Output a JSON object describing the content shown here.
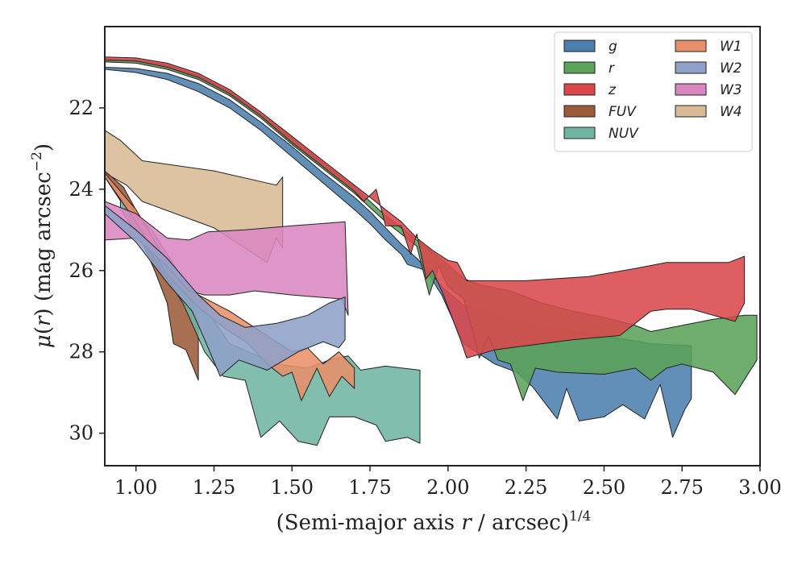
{
  "chart_data": {
    "type": "area",
    "xlabel": "(Semi-major axis r / arcsec)",
    "xlabel_italic_part": "r",
    "xlabel_superscript": "1/4",
    "ylabel": "μ(r) (mag arcsec",
    "ylabel_superscript": "−2",
    "ylabel_close": ")",
    "xlim": [
      0.9,
      3.0
    ],
    "ylim": [
      30.8,
      20.0
    ],
    "y_inverted": true,
    "xticks": [
      1.0,
      1.25,
      1.5,
      1.75,
      2.0,
      2.25,
      2.5,
      2.75,
      3.0
    ],
    "xtick_labels": [
      "1.00",
      "1.25",
      "1.50",
      "1.75",
      "2.00",
      "2.25",
      "2.50",
      "2.75",
      "3.00"
    ],
    "yticks": [
      22,
      24,
      26,
      28,
      30
    ],
    "ytick_labels": [
      "22",
      "24",
      "26",
      "28",
      "30"
    ],
    "grid": false,
    "legend_placement": "top-right",
    "legend_columns": 2,
    "series": [
      {
        "name": "W4",
        "color": "#d8bb95",
        "upper": [
          [
            0.9,
            22.55
          ],
          [
            0.95,
            22.8
          ],
          [
            1.02,
            23.3
          ],
          [
            1.25,
            23.55
          ],
          [
            1.45,
            23.9
          ],
          [
            1.47,
            23.7
          ]
        ],
        "lower": [
          [
            0.9,
            23.6
          ],
          [
            0.97,
            23.9
          ],
          [
            1.02,
            24.3
          ],
          [
            1.25,
            24.95
          ],
          [
            1.42,
            25.8
          ],
          [
            1.45,
            25.2
          ],
          [
            1.47,
            25.45
          ]
        ]
      },
      {
        "name": "FUV",
        "color": "#9c5b3a",
        "upper": [
          [
            0.9,
            23.55
          ],
          [
            0.96,
            23.95
          ],
          [
            1.02,
            24.8
          ],
          [
            1.07,
            25.6
          ],
          [
            1.12,
            26.3
          ],
          [
            1.17,
            26.6
          ],
          [
            1.2,
            27.1
          ]
        ],
        "lower": [
          [
            0.9,
            23.7
          ],
          [
            0.96,
            24.4
          ],
          [
            1.02,
            25.3
          ],
          [
            1.06,
            26.0
          ],
          [
            1.1,
            26.8
          ],
          [
            1.12,
            27.8
          ],
          [
            1.16,
            27.95
          ],
          [
            1.2,
            28.7
          ]
        ]
      },
      {
        "name": "NUV",
        "color": "#6fb5a2",
        "upper": [
          [
            0.95,
            24.2
          ],
          [
            1.05,
            25.0
          ],
          [
            1.15,
            26.2
          ],
          [
            1.22,
            26.9
          ],
          [
            1.3,
            27.8
          ],
          [
            1.45,
            28.3
          ],
          [
            1.55,
            28.4
          ],
          [
            1.62,
            28.2
          ],
          [
            1.68,
            28.1
          ],
          [
            1.72,
            28.45
          ],
          [
            1.8,
            28.35
          ],
          [
            1.91,
            28.45
          ]
        ],
        "lower": [
          [
            0.95,
            24.5
          ],
          [
            1.05,
            25.6
          ],
          [
            1.15,
            26.8
          ],
          [
            1.22,
            28.0
          ],
          [
            1.28,
            28.6
          ],
          [
            1.35,
            28.7
          ],
          [
            1.4,
            30.1
          ],
          [
            1.46,
            29.7
          ],
          [
            1.52,
            30.2
          ],
          [
            1.58,
            30.3
          ],
          [
            1.62,
            29.6
          ],
          [
            1.7,
            29.6
          ],
          [
            1.77,
            29.8
          ],
          [
            1.8,
            30.2
          ],
          [
            1.87,
            30.1
          ],
          [
            1.91,
            30.25
          ]
        ]
      },
      {
        "name": "W1",
        "color": "#e8906a",
        "upper": [
          [
            0.9,
            23.6
          ],
          [
            1.0,
            24.5
          ],
          [
            1.1,
            25.8
          ],
          [
            1.2,
            26.6
          ],
          [
            1.3,
            27.0
          ],
          [
            1.36,
            27.3
          ],
          [
            1.42,
            27.6
          ],
          [
            1.5,
            28.0
          ],
          [
            1.55,
            27.9
          ],
          [
            1.6,
            28.3
          ],
          [
            1.65,
            28.0
          ],
          [
            1.7,
            28.4
          ]
        ],
        "lower": [
          [
            0.9,
            23.7
          ],
          [
            1.0,
            24.8
          ],
          [
            1.1,
            26.1
          ],
          [
            1.2,
            26.9
          ],
          [
            1.28,
            27.4
          ],
          [
            1.36,
            27.8
          ],
          [
            1.42,
            28.3
          ],
          [
            1.47,
            28.6
          ],
          [
            1.5,
            28.5
          ],
          [
            1.53,
            29.2
          ],
          [
            1.58,
            28.4
          ],
          [
            1.62,
            29.1
          ],
          [
            1.66,
            28.6
          ],
          [
            1.7,
            28.9
          ]
        ]
      },
      {
        "name": "W3",
        "color": "#d987c1",
        "upper": [
          [
            0.9,
            24.3
          ],
          [
            1.0,
            24.6
          ],
          [
            1.1,
            25.2
          ],
          [
            1.17,
            25.25
          ],
          [
            1.23,
            25.05
          ],
          [
            1.35,
            25.0
          ],
          [
            1.5,
            24.9
          ],
          [
            1.67,
            24.8
          ]
        ],
        "lower": [
          [
            0.9,
            25.25
          ],
          [
            1.0,
            25.2
          ],
          [
            1.1,
            25.9
          ],
          [
            1.17,
            26.5
          ],
          [
            1.22,
            26.6
          ],
          [
            1.3,
            26.6
          ],
          [
            1.38,
            26.5
          ],
          [
            1.5,
            26.6
          ],
          [
            1.66,
            26.7
          ],
          [
            1.68,
            27.1
          ]
        ]
      },
      {
        "name": "W2",
        "color": "#8ea0c8",
        "upper": [
          [
            0.9,
            24.4
          ],
          [
            1.0,
            25.0
          ],
          [
            1.1,
            25.7
          ],
          [
            1.2,
            26.6
          ],
          [
            1.27,
            27.1
          ],
          [
            1.35,
            27.4
          ],
          [
            1.45,
            27.3
          ],
          [
            1.55,
            27.1
          ],
          [
            1.62,
            26.8
          ],
          [
            1.67,
            26.65
          ]
        ],
        "lower": [
          [
            0.9,
            24.6
          ],
          [
            1.0,
            25.3
          ],
          [
            1.1,
            26.3
          ],
          [
            1.18,
            27.0
          ],
          [
            1.22,
            27.7
          ],
          [
            1.27,
            28.6
          ],
          [
            1.33,
            28.2
          ],
          [
            1.42,
            28.45
          ],
          [
            1.52,
            28.0
          ],
          [
            1.6,
            27.75
          ],
          [
            1.65,
            27.9
          ],
          [
            1.67,
            27.7
          ]
        ]
      },
      {
        "name": "g",
        "color": "#4c7fad",
        "upper": [
          [
            0.9,
            21.0
          ],
          [
            1.0,
            21.03
          ],
          [
            1.1,
            21.15
          ],
          [
            1.2,
            21.4
          ],
          [
            1.3,
            21.8
          ],
          [
            1.4,
            22.35
          ],
          [
            1.5,
            22.95
          ],
          [
            1.6,
            23.6
          ],
          [
            1.7,
            24.2
          ],
          [
            1.75,
            24.55
          ],
          [
            1.8,
            24.95
          ],
          [
            1.85,
            25.35
          ],
          [
            1.9,
            25.7
          ],
          [
            1.95,
            26.1
          ],
          [
            1.98,
            26.4
          ],
          [
            2.05,
            26.85
          ],
          [
            2.15,
            27.05
          ],
          [
            2.25,
            27.3
          ],
          [
            2.35,
            27.45
          ],
          [
            2.5,
            27.6
          ],
          [
            2.65,
            27.8
          ],
          [
            2.78,
            27.85
          ]
        ],
        "lower": [
          [
            0.9,
            21.05
          ],
          [
            1.0,
            21.13
          ],
          [
            1.1,
            21.3
          ],
          [
            1.2,
            21.6
          ],
          [
            1.3,
            22.0
          ],
          [
            1.4,
            22.55
          ],
          [
            1.5,
            23.2
          ],
          [
            1.6,
            23.85
          ],
          [
            1.7,
            24.5
          ],
          [
            1.75,
            24.85
          ],
          [
            1.8,
            25.25
          ],
          [
            1.85,
            25.6
          ],
          [
            1.87,
            25.85
          ],
          [
            1.93,
            26.0
          ],
          [
            1.98,
            26.6
          ],
          [
            2.05,
            27.8
          ],
          [
            2.15,
            28.3
          ],
          [
            2.22,
            28.5
          ],
          [
            2.27,
            28.85
          ],
          [
            2.32,
            29.35
          ],
          [
            2.35,
            29.65
          ],
          [
            2.38,
            28.9
          ],
          [
            2.42,
            29.7
          ],
          [
            2.5,
            29.6
          ],
          [
            2.56,
            29.3
          ],
          [
            2.63,
            29.65
          ],
          [
            2.68,
            28.8
          ],
          [
            2.72,
            30.1
          ],
          [
            2.76,
            29.4
          ],
          [
            2.78,
            29.15
          ]
        ]
      },
      {
        "name": "r",
        "color": "#5aa25a",
        "upper": [
          [
            0.9,
            20.8
          ],
          [
            1.0,
            20.82
          ],
          [
            1.1,
            20.95
          ],
          [
            1.2,
            21.2
          ],
          [
            1.3,
            21.6
          ],
          [
            1.4,
            22.15
          ],
          [
            1.5,
            22.75
          ],
          [
            1.6,
            23.35
          ],
          [
            1.7,
            23.95
          ],
          [
            1.75,
            24.3
          ],
          [
            1.8,
            24.65
          ],
          [
            1.85,
            24.95
          ],
          [
            1.9,
            25.25
          ],
          [
            1.95,
            25.55
          ],
          [
            2.0,
            25.85
          ],
          [
            2.05,
            26.2
          ],
          [
            2.1,
            26.35
          ],
          [
            2.2,
            26.5
          ],
          [
            2.3,
            26.8
          ],
          [
            2.4,
            27.0
          ],
          [
            2.5,
            27.15
          ],
          [
            2.6,
            27.35
          ],
          [
            2.65,
            27.5
          ],
          [
            2.75,
            27.35
          ],
          [
            2.85,
            27.2
          ],
          [
            2.95,
            27.1
          ],
          [
            2.99,
            27.1
          ]
        ],
        "lower": [
          [
            0.9,
            20.87
          ],
          [
            1.0,
            20.9
          ],
          [
            1.1,
            21.05
          ],
          [
            1.2,
            21.3
          ],
          [
            1.3,
            21.7
          ],
          [
            1.4,
            22.25
          ],
          [
            1.5,
            22.9
          ],
          [
            1.6,
            23.5
          ],
          [
            1.7,
            24.1
          ],
          [
            1.75,
            24.45
          ],
          [
            1.8,
            24.8
          ],
          [
            1.85,
            25.1
          ],
          [
            1.9,
            25.4
          ],
          [
            1.94,
            26.6
          ],
          [
            1.97,
            25.9
          ],
          [
            2.0,
            26.4
          ],
          [
            2.05,
            26.7
          ],
          [
            2.08,
            27.5
          ],
          [
            2.1,
            28.15
          ],
          [
            2.13,
            27.6
          ],
          [
            2.16,
            28.2
          ],
          [
            2.2,
            28.3
          ],
          [
            2.24,
            29.2
          ],
          [
            2.28,
            28.4
          ],
          [
            2.35,
            28.5
          ],
          [
            2.5,
            28.55
          ],
          [
            2.6,
            28.4
          ],
          [
            2.65,
            28.7
          ],
          [
            2.7,
            28.4
          ],
          [
            2.75,
            28.3
          ],
          [
            2.85,
            28.5
          ],
          [
            2.92,
            29.05
          ],
          [
            2.99,
            28.2
          ]
        ]
      },
      {
        "name": "z",
        "color": "#d9484c",
        "upper": [
          [
            0.9,
            20.75
          ],
          [
            1.0,
            20.77
          ],
          [
            1.1,
            20.9
          ],
          [
            1.2,
            21.15
          ],
          [
            1.3,
            21.55
          ],
          [
            1.4,
            22.1
          ],
          [
            1.5,
            22.7
          ],
          [
            1.6,
            23.3
          ],
          [
            1.7,
            23.9
          ],
          [
            1.75,
            24.2
          ],
          [
            1.8,
            24.5
          ],
          [
            1.85,
            24.8
          ],
          [
            1.9,
            25.2
          ],
          [
            1.95,
            25.5
          ],
          [
            2.0,
            25.75
          ],
          [
            2.03,
            25.8
          ],
          [
            2.06,
            26.25
          ],
          [
            2.15,
            26.25
          ],
          [
            2.25,
            26.25
          ],
          [
            2.45,
            26.15
          ],
          [
            2.6,
            25.95
          ],
          [
            2.7,
            25.8
          ],
          [
            2.9,
            25.8
          ],
          [
            2.95,
            25.65
          ]
        ],
        "lower": [
          [
            0.9,
            20.83
          ],
          [
            1.0,
            20.85
          ],
          [
            1.1,
            21.0
          ],
          [
            1.2,
            21.25
          ],
          [
            1.3,
            21.65
          ],
          [
            1.4,
            22.2
          ],
          [
            1.5,
            22.85
          ],
          [
            1.6,
            23.45
          ],
          [
            1.7,
            24.05
          ],
          [
            1.73,
            24.3
          ],
          [
            1.77,
            24.0
          ],
          [
            1.8,
            24.9
          ],
          [
            1.85,
            24.9
          ],
          [
            1.88,
            25.6
          ],
          [
            1.9,
            25.1
          ],
          [
            1.93,
            26.2
          ],
          [
            1.95,
            26.0
          ],
          [
            1.98,
            26.5
          ],
          [
            2.02,
            27.3
          ],
          [
            2.04,
            27.7
          ],
          [
            2.06,
            28.15
          ],
          [
            2.15,
            27.95
          ],
          [
            2.25,
            27.85
          ],
          [
            2.4,
            27.7
          ],
          [
            2.55,
            27.6
          ],
          [
            2.65,
            27.0
          ],
          [
            2.7,
            26.95
          ],
          [
            2.78,
            26.95
          ],
          [
            2.92,
            27.25
          ],
          [
            2.95,
            26.8
          ]
        ]
      }
    ]
  }
}
